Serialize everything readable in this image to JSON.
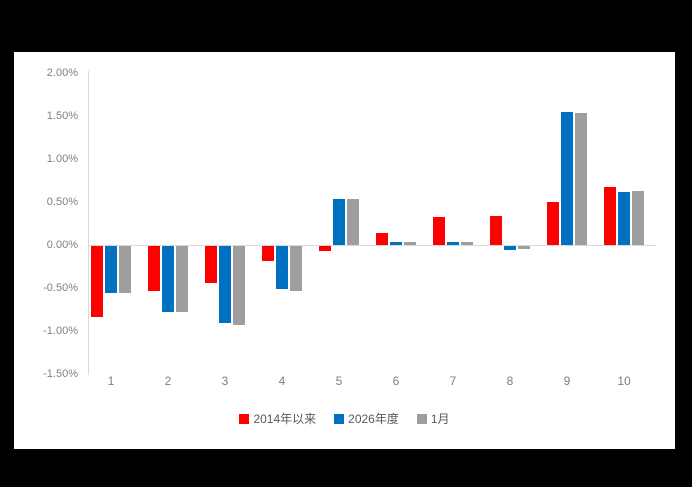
{
  "chart_data": {
    "type": "bar",
    "title": "",
    "categories": [
      "1",
      "2",
      "3",
      "4",
      "5",
      "6",
      "7",
      "8",
      "9",
      "10"
    ],
    "series": [
      {
        "name": "2014年以来",
        "color": "#FF0000",
        "values": [
          -0.82,
          -0.52,
          -0.43,
          -0.17,
          -0.06,
          0.14,
          0.32,
          0.34,
          0.5,
          0.68
        ]
      },
      {
        "name": "2026年度",
        "color": "#0070C0",
        "values": [
          -0.55,
          -0.77,
          -0.9,
          -0.5,
          0.54,
          0.03,
          0.04,
          -0.05,
          1.55,
          0.62
        ]
      },
      {
        "name": "1月",
        "color": "#9E9E9E",
        "values": [
          -0.55,
          -0.77,
          -0.92,
          -0.52,
          0.53,
          0.03,
          0.04,
          -0.04,
          1.54,
          0.63
        ]
      }
    ],
    "y_axis": {
      "tick_labels": [
        "2.00%",
        "1.50%",
        "1.00%",
        "0.50%",
        "0.00%",
        "-0.50%",
        "-1.00%",
        "-1.50%"
      ],
      "max": 2.0,
      "min": -1.5,
      "step": 0.5,
      "unit": "percent"
    },
    "xlabel": "",
    "ylabel": "",
    "grid": false,
    "legend_position": "bottom"
  },
  "colors": {
    "page_background": "#000000",
    "chart_background": "#FFFFFF",
    "axis_line": "#D9D9D9",
    "tick_text": "#7F7F7F",
    "legend_text": "#595959"
  }
}
